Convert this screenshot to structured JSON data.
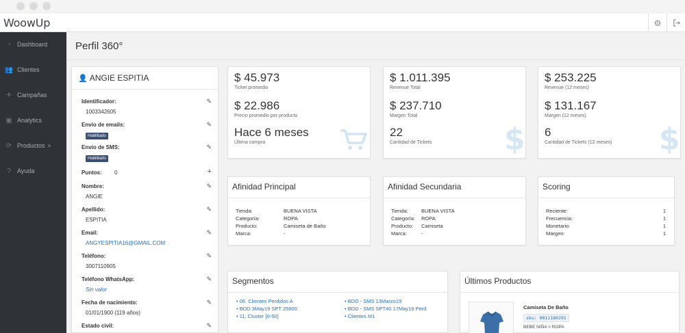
{
  "app": {
    "logo": "WoowUp"
  },
  "sidebar": {
    "items": [
      {
        "label": "Dashboard",
        "icon": "dashboard-icon"
      },
      {
        "label": "Clientes",
        "icon": "users-icon"
      },
      {
        "label": "Campañas",
        "icon": "paper-plane-icon"
      },
      {
        "label": "Analytics",
        "icon": "analytics-icon"
      },
      {
        "label": "Productos",
        "icon": "products-icon",
        "chevron": ">"
      },
      {
        "label": "Ayuda",
        "icon": "help-icon"
      }
    ]
  },
  "page": {
    "title": "Perfil 360°"
  },
  "profile": {
    "name": "ANGIE ESPITIA",
    "fields": {
      "identificador": {
        "label": "Identificador:",
        "value": "1003342605"
      },
      "envio_emails": {
        "label": "Envío de emails:",
        "badge": "Habilitado"
      },
      "envio_sms": {
        "label": "Envío de SMS:",
        "badge": "Habilitado"
      },
      "puntos": {
        "label": "Puntos:",
        "value": "0"
      },
      "nombre": {
        "label": "Nombre:",
        "value": "ANGIE"
      },
      "apellido": {
        "label": "Apellido:",
        "value": "ESPITIA"
      },
      "email": {
        "label": "Email:",
        "value": "ANGYESPITIA16@GMAIL.COM"
      },
      "telefono": {
        "label": "Teléfono:",
        "value": "3007110905"
      },
      "whatsapp": {
        "label": "Teléfono WhatsApp:",
        "value": "Sin valor"
      },
      "nacimiento": {
        "label": "Fecha de nacimiento:",
        "value": "01/01/1900 (119 años)"
      },
      "estado_civil": {
        "label": "Estado civil:"
      }
    }
  },
  "metrics": {
    "card1": [
      {
        "value": "$ 45.973",
        "label": "Ticket promedio"
      },
      {
        "value": "$ 22.986",
        "label": "Precio promedio por producto"
      },
      {
        "value": "Hace 6 meses",
        "label": "Última compra"
      }
    ],
    "card2": [
      {
        "value": "$ 1.011.395",
        "label": "Revenue Total"
      },
      {
        "value": "$ 237.710",
        "label": "Margen Total"
      },
      {
        "value": "22",
        "label": "Cantidad de Tickets"
      }
    ],
    "card3": [
      {
        "value": "$ 253.225",
        "label": "Revenue (12 meses)"
      },
      {
        "value": "$ 131.167",
        "label": "Margen (12 meses)"
      },
      {
        "value": "6",
        "label": "Cantidad de Tickets (12 meses)"
      }
    ]
  },
  "afinidad_principal": {
    "title": "Afinidad Principal",
    "rows": [
      {
        "key": "Tienda:",
        "value": "BUENA VISTA"
      },
      {
        "key": "Categoría:",
        "value": "ROPA"
      },
      {
        "key": "Producto:",
        "value": "Camiseta de Baño"
      },
      {
        "key": "Marca:",
        "value": "-"
      }
    ]
  },
  "afinidad_secundaria": {
    "title": "Afinidad Secundaria",
    "rows": [
      {
        "key": "Tienda:",
        "value": "BUENA VISTA"
      },
      {
        "key": "Categoría:",
        "value": "ROPA"
      },
      {
        "key": "Producto:",
        "value": "Camiseta"
      },
      {
        "key": "Marca:",
        "value": "-"
      }
    ]
  },
  "scoring": {
    "title": "Scoring",
    "rows": [
      {
        "key": "Reciente:",
        "value": "1"
      },
      {
        "key": "Frecuencia:",
        "value": "1"
      },
      {
        "key": "Monetario:",
        "value": "1"
      },
      {
        "key": "Margen:",
        "value": "1"
      }
    ]
  },
  "segmentos": {
    "title": "Segmentos",
    "left": [
      "06. Clientes Perdidos A",
      "BDD 3May19 SPT 25900",
      "11. Cluster [0-50]"
    ],
    "right": [
      "BDD - SMS 13Marzo19",
      "BDD - SMS SPT40 17May19 Perd",
      "Clientes M1"
    ]
  },
  "ultimos_productos": {
    "title": "Últimos Productos",
    "item": {
      "name": "Camiseta De Baño",
      "sku": "sku: 0011180291",
      "category": "BEBE NIÑA > ROPA"
    }
  }
}
